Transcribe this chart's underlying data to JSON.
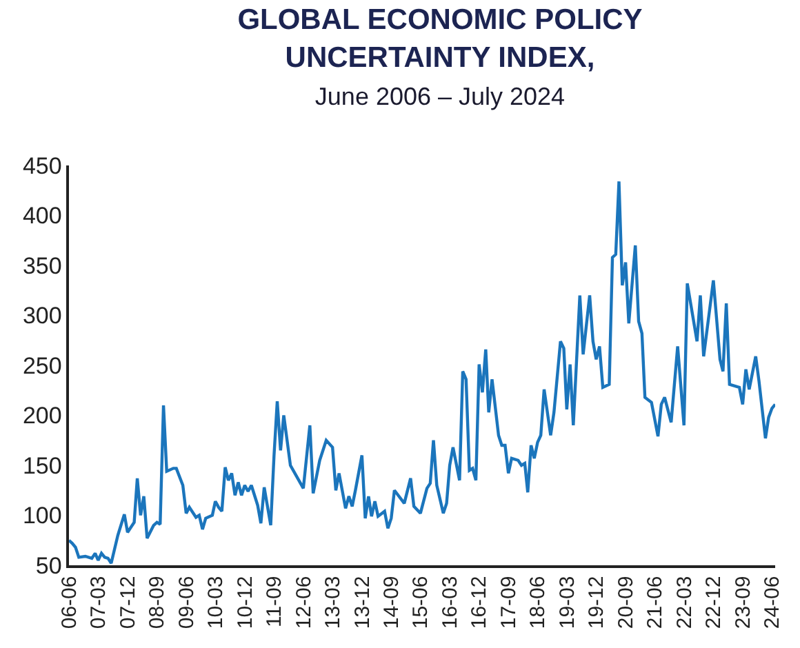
{
  "chart_data": {
    "type": "line",
    "title": "GLOBAL ECONOMIC POLICY\nUNCERTAINTY INDEX,",
    "subtitle": "June 2006 – July 2024",
    "series": [
      {
        "color": "#1b75bc",
        "x": [
          "2006-06",
          "2006-07",
          "2006-08",
          "2006-09",
          "2006-11",
          "2007-01",
          "2007-02",
          "2007-03",
          "2007-04",
          "2007-05",
          "2007-06",
          "2007-07",
          "2007-09",
          "2007-11",
          "2007-12",
          "2008-02",
          "2008-03",
          "2008-04",
          "2008-05",
          "2008-06",
          "2008-08",
          "2008-09",
          "2008-10",
          "2008-11",
          "2008-12",
          "2009-02",
          "2009-03",
          "2009-05",
          "2009-06",
          "2009-07",
          "2009-09",
          "2009-10",
          "2009-11",
          "2009-12",
          "2010-02",
          "2010-03",
          "2010-04",
          "2010-05",
          "2010-06",
          "2010-07",
          "2010-08",
          "2010-09",
          "2010-10",
          "2010-11",
          "2010-12",
          "2011-01",
          "2011-02",
          "2011-04",
          "2011-05",
          "2011-06",
          "2011-08",
          "2011-09",
          "2011-10",
          "2011-11",
          "2011-12",
          "2012-02",
          "2012-06",
          "2012-08",
          "2012-09",
          "2012-11",
          "2013-01",
          "2013-03",
          "2013-04",
          "2013-05",
          "2013-07",
          "2013-08",
          "2013-09",
          "2013-10",
          "2013-12",
          "2014-01",
          "2014-02",
          "2014-03",
          "2014-04",
          "2014-05",
          "2014-07",
          "2014-08",
          "2014-09",
          "2014-10",
          "2015-01",
          "2015-03",
          "2015-04",
          "2015-06",
          "2015-08",
          "2015-09",
          "2015-10",
          "2015-11",
          "2016-01",
          "2016-02",
          "2016-03",
          "2016-04",
          "2016-06",
          "2016-07",
          "2016-08",
          "2016-09",
          "2016-10",
          "2016-11",
          "2016-12",
          "2017-01",
          "2017-02",
          "2017-03",
          "2017-04",
          "2017-06",
          "2017-07",
          "2017-08",
          "2017-09",
          "2017-10",
          "2017-12",
          "2018-01",
          "2018-02",
          "2018-03",
          "2018-04",
          "2018-05",
          "2018-06",
          "2018-07",
          "2018-08",
          "2018-10",
          "2018-11",
          "2019-01",
          "2019-02",
          "2019-03",
          "2019-04",
          "2019-05",
          "2019-07",
          "2019-08",
          "2019-10",
          "2019-11",
          "2019-12",
          "2020-01",
          "2020-02",
          "2020-04",
          "2020-05",
          "2020-06",
          "2020-07",
          "2020-08",
          "2020-09",
          "2020-10",
          "2020-12",
          "2021-01",
          "2021-02",
          "2021-03",
          "2021-05",
          "2021-07",
          "2021-08",
          "2021-09",
          "2021-11",
          "2022-01",
          "2022-03",
          "2022-04",
          "2022-07",
          "2022-08",
          "2022-09",
          "2022-12",
          "2023-02",
          "2023-03",
          "2023-04",
          "2023-05",
          "2023-08",
          "2023-09",
          "2023-10",
          "2023-11",
          "2024-01",
          "2024-02",
          "2024-04",
          "2024-05",
          "2024-06",
          "2024-07"
        ],
        "values": [
          75,
          72,
          68,
          58,
          59,
          57,
          62,
          55,
          62,
          58,
          57,
          52,
          80,
          101,
          83,
          93,
          137,
          100,
          119,
          77,
          90,
          93,
          91,
          210,
          144,
          147,
          147,
          130,
          102,
          108,
          98,
          100,
          86,
          97,
          100,
          114,
          108,
          104,
          148,
          135,
          142,
          120,
          133,
          120,
          130,
          124,
          130,
          110,
          92,
          128,
          90,
          160,
          214,
          165,
          200,
          150,
          127,
          190,
          122,
          155,
          175,
          168,
          125,
          142,
          107,
          119,
          109,
          125,
          160,
          97,
          119,
          99,
          114,
          99,
          104,
          87,
          97,
          125,
          112,
          137,
          109,
          102,
          127,
          132,
          175,
          130,
          102,
          112,
          150,
          168,
          135,
          244,
          236,
          145,
          147,
          135,
          251,
          223,
          266,
          203,
          236,
          180,
          170,
          170,
          142,
          157,
          155,
          150,
          152,
          123,
          170,
          157,
          173,
          180,
          226,
          180,
          203,
          274,
          267,
          206,
          251,
          190,
          320,
          261,
          320,
          274,
          256,
          269,
          228,
          231,
          358,
          361,
          434,
          330,
          353,
          292,
          370,
          294,
          282,
          218,
          213,
          179,
          211,
          218,
          193,
          269,
          190,
          332,
          274,
          320,
          259,
          335,
          256,
          244,
          312,
          231,
          228,
          211,
          246,
          226,
          259,
          234,
          177,
          198,
          207,
          211
        ]
      }
    ],
    "xlim": [
      "2006-06",
      "2024-07"
    ],
    "xticks": [
      {
        "value": "2006-06",
        "label": "06-06"
      },
      {
        "value": "2007-03",
        "label": "07-03"
      },
      {
        "value": "2007-12",
        "label": "07-12"
      },
      {
        "value": "2008-09",
        "label": "08-09"
      },
      {
        "value": "2009-06",
        "label": "09-06"
      },
      {
        "value": "2010-03",
        "label": "10-03"
      },
      {
        "value": "2010-12",
        "label": "10-12"
      },
      {
        "value": "2011-09",
        "label": "11-09"
      },
      {
        "value": "2012-06",
        "label": "12-06"
      },
      {
        "value": "2013-03",
        "label": "13-03"
      },
      {
        "value": "2013-12",
        "label": "13-12"
      },
      {
        "value": "2014-09",
        "label": "14-09"
      },
      {
        "value": "2015-06",
        "label": "15-06"
      },
      {
        "value": "2016-03",
        "label": "16-03"
      },
      {
        "value": "2016-12",
        "label": "16-12"
      },
      {
        "value": "2017-09",
        "label": "17-09"
      },
      {
        "value": "2018-06",
        "label": "18-06"
      },
      {
        "value": "2019-03",
        "label": "19-03"
      },
      {
        "value": "2019-12",
        "label": "19-12"
      },
      {
        "value": "2020-09",
        "label": "20-09"
      },
      {
        "value": "2021-06",
        "label": "21-06"
      },
      {
        "value": "2022-03",
        "label": "22-03"
      },
      {
        "value": "2022-12",
        "label": "22-12"
      },
      {
        "value": "2023-09",
        "label": "23-09"
      },
      {
        "value": "2024-06",
        "label": "24-06"
      }
    ],
    "ylim": [
      50,
      450
    ],
    "yticks": [
      50,
      100,
      150,
      200,
      250,
      300,
      350,
      400,
      450
    ],
    "marker": "none",
    "line_style": "solid"
  }
}
